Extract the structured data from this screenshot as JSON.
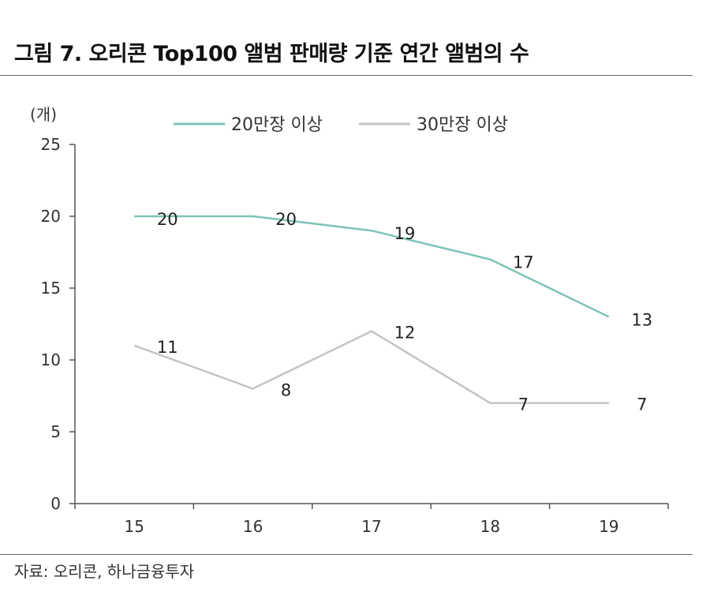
{
  "figure": {
    "title": "그림 7. 오리콘 Top100 앨범 판매량 기준 연간 앨범의 수",
    "source": "자료: 오리콘, 하나금융투자"
  },
  "chart_data": {
    "type": "line",
    "unit_label": "(개)",
    "categories": [
      "15",
      "16",
      "17",
      "18",
      "19"
    ],
    "series": [
      {
        "name": "20만장 이상",
        "values": [
          20,
          20,
          19,
          17,
          13
        ],
        "color": "#7fc4b8"
      },
      {
        "name": "30만장 이상",
        "values": [
          11,
          8,
          12,
          7,
          7
        ],
        "color": "#c4c4c4"
      }
    ],
    "ylim": [
      0,
      25
    ],
    "yticks": [
      0,
      5,
      10,
      15,
      20,
      25
    ],
    "grid": false,
    "legend": "top-center"
  }
}
